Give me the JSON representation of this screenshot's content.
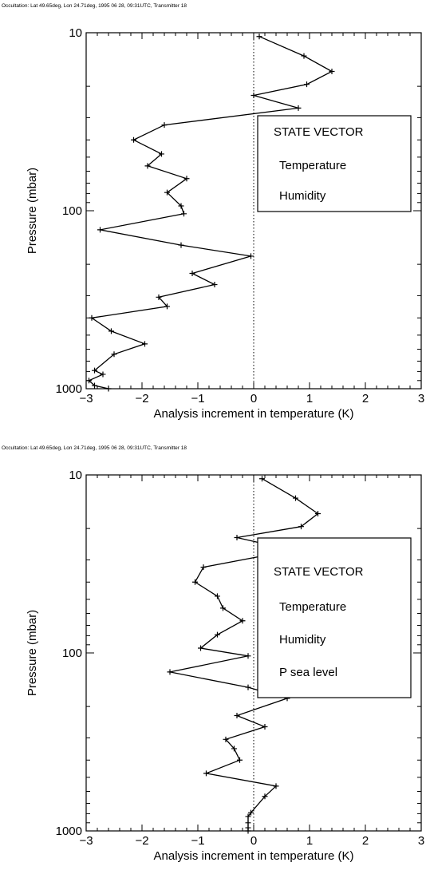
{
  "chart_data": [
    {
      "type": "line",
      "header": "Occultation: Lat  49.65deg, Lon  24.71deg, 1995 06 28, 09:31UTC, Transmitter 18",
      "xlabel": "Analysis increment in temperature (K)",
      "ylabel": "Pressure (mbar)",
      "xlim": [
        -3,
        3
      ],
      "ylim": [
        1000,
        10
      ],
      "yscale": "log",
      "x_ticks": [
        -3,
        -2,
        -1,
        0,
        1,
        2,
        3
      ],
      "y_ticks": [
        10,
        100,
        1000
      ],
      "reference_line_x": 0,
      "legend": {
        "title": "STATE VECTOR",
        "entries": [
          "Temperature",
          "Humidity"
        ],
        "placement": "right"
      },
      "series": [
        {
          "values": [
            {
              "x": 0.1,
              "y": 10.5
            },
            {
              "x": 0.9,
              "y": 13.5
            },
            {
              "x": 1.4,
              "y": 16.5
            },
            {
              "x": 0.95,
              "y": 19.5
            },
            {
              "x": 0.0,
              "y": 22.5
            },
            {
              "x": 0.8,
              "y": 26.5
            },
            {
              "x": -1.6,
              "y": 33
            },
            {
              "x": -2.15,
              "y": 40
            },
            {
              "x": -1.65,
              "y": 48
            },
            {
              "x": -1.9,
              "y": 56
            },
            {
              "x": -1.2,
              "y": 66
            },
            {
              "x": -1.55,
              "y": 79
            },
            {
              "x": -1.3,
              "y": 94
            },
            {
              "x": -1.25,
              "y": 104
            },
            {
              "x": -2.75,
              "y": 128
            },
            {
              "x": -1.3,
              "y": 156
            },
            {
              "x": -0.05,
              "y": 180
            },
            {
              "x": -1.1,
              "y": 225
            },
            {
              "x": -0.7,
              "y": 260
            },
            {
              "x": -1.7,
              "y": 306
            },
            {
              "x": -1.55,
              "y": 345
            },
            {
              "x": -2.9,
              "y": 400
            },
            {
              "x": -2.55,
              "y": 475
            },
            {
              "x": -1.95,
              "y": 560
            },
            {
              "x": -2.5,
              "y": 640
            },
            {
              "x": -2.85,
              "y": 790
            },
            {
              "x": -2.7,
              "y": 830
            },
            {
              "x": -2.95,
              "y": 900
            },
            {
              "x": -2.85,
              "y": 960
            },
            {
              "x": -2.6,
              "y": 1000
            }
          ]
        }
      ]
    },
    {
      "type": "line",
      "header": "Occultation: Lat  49.65deg, Lon  24.71deg, 1995 06 28, 09:31UTC, Transmitter 18",
      "xlabel": "Analysis increment in temperature (K)",
      "ylabel": "Pressure (mbar)",
      "xlim": [
        -3,
        3
      ],
      "ylim": [
        1000,
        10
      ],
      "yscale": "log",
      "x_ticks": [
        -3,
        -2,
        -1,
        0,
        1,
        2,
        3
      ],
      "y_ticks": [
        10,
        100,
        1000
      ],
      "reference_line_x": 0,
      "legend": {
        "title": "STATE VECTOR",
        "entries": [
          "Temperature",
          "Humidity",
          "P sea level"
        ],
        "placement": "right"
      },
      "series": [
        {
          "values": [
            {
              "x": 0.15,
              "y": 10.5
            },
            {
              "x": 0.75,
              "y": 13.5
            },
            {
              "x": 1.15,
              "y": 16.5
            },
            {
              "x": 0.85,
              "y": 19.5
            },
            {
              "x": -0.3,
              "y": 22.5
            },
            {
              "x": 0.7,
              "y": 26.5
            },
            {
              "x": -0.9,
              "y": 33
            },
            {
              "x": -1.05,
              "y": 40
            },
            {
              "x": -0.65,
              "y": 48
            },
            {
              "x": -0.55,
              "y": 56
            },
            {
              "x": -0.2,
              "y": 66
            },
            {
              "x": -0.65,
              "y": 79
            },
            {
              "x": -0.95,
              "y": 94
            },
            {
              "x": -0.1,
              "y": 104
            },
            {
              "x": -1.5,
              "y": 128
            },
            {
              "x": -0.1,
              "y": 156
            },
            {
              "x": 0.6,
              "y": 180
            },
            {
              "x": -0.3,
              "y": 225
            },
            {
              "x": 0.2,
              "y": 260
            },
            {
              "x": -0.5,
              "y": 306
            },
            {
              "x": -0.35,
              "y": 345
            },
            {
              "x": -0.25,
              "y": 400
            },
            {
              "x": -0.85,
              "y": 475
            },
            {
              "x": 0.4,
              "y": 560
            },
            {
              "x": 0.2,
              "y": 640
            },
            {
              "x": -0.05,
              "y": 790
            },
            {
              "x": -0.1,
              "y": 830
            },
            {
              "x": -0.1,
              "y": 900
            },
            {
              "x": -0.1,
              "y": 960
            },
            {
              "x": -0.1,
              "y": 1000
            }
          ]
        }
      ]
    }
  ]
}
